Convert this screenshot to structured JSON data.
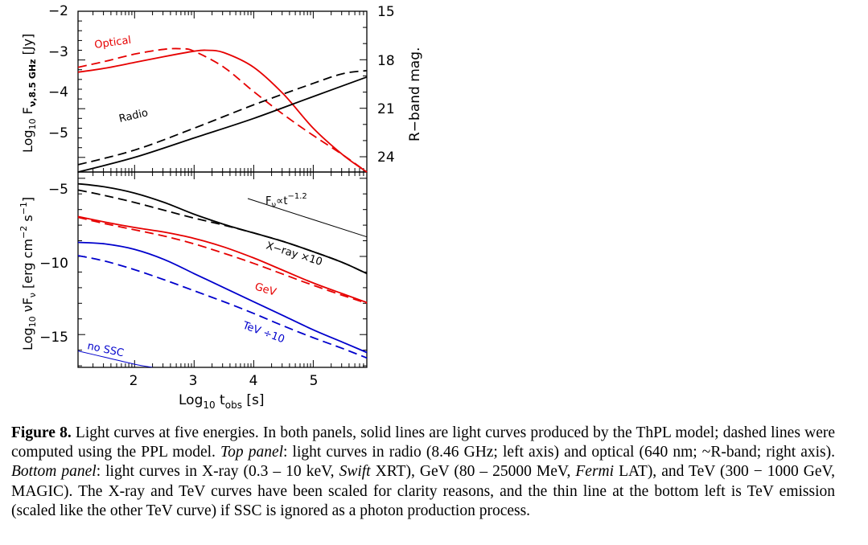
{
  "chart_data": [
    {
      "type": "line",
      "panel": "top",
      "xlabel": "Log10 tobs [s]",
      "ylabel": "Log10 Fν,8.5 GHz [Jy]",
      "ylabel_right": "R−band mag.",
      "xlim": [
        1.05,
        5.9
      ],
      "ylim": [
        -5.3,
        -2.0
      ],
      "yticks": [
        "−2",
        "−3",
        "−4",
        "−5"
      ],
      "yticks_right": [
        "15",
        "18",
        "21",
        "24"
      ],
      "colors": {
        "optical": "#e60000",
        "radio": "#000000"
      },
      "series": [
        {
          "name": "Optical",
          "style": "solid",
          "color": "#e60000",
          "x": [
            1.05,
            1.5,
            2.0,
            2.5,
            3.0,
            3.2,
            3.5,
            4.0,
            4.5,
            5.0,
            5.5,
            5.9
          ],
          "y": [
            -3.25,
            -3.17,
            -3.05,
            -2.93,
            -2.82,
            -2.8,
            -2.85,
            -3.15,
            -3.7,
            -4.4,
            -4.95,
            -5.3
          ]
        },
        {
          "name": "Optical",
          "style": "dashed",
          "color": "#e60000",
          "x": [
            1.05,
            1.5,
            2.0,
            2.5,
            2.8,
            3.0,
            3.5,
            4.0,
            4.5,
            5.0,
            5.5,
            5.9
          ],
          "y": [
            -3.15,
            -3.03,
            -2.88,
            -2.78,
            -2.77,
            -2.82,
            -3.15,
            -3.65,
            -4.12,
            -4.55,
            -4.95,
            -5.3
          ]
        },
        {
          "name": "Radio",
          "style": "solid",
          "color": "#000000",
          "x": [
            1.05,
            2.0,
            3.0,
            4.0,
            5.0,
            5.9
          ],
          "y": [
            -5.3,
            -5.0,
            -4.6,
            -4.2,
            -3.75,
            -3.35
          ]
        },
        {
          "name": "Radio",
          "style": "dashed",
          "color": "#000000",
          "x": [
            1.05,
            2.0,
            3.0,
            4.0,
            5.0,
            5.5,
            5.9
          ],
          "y": [
            -5.15,
            -4.85,
            -4.4,
            -3.92,
            -3.48,
            -3.28,
            -3.22
          ]
        }
      ],
      "annotations": [
        "Optical",
        "Radio"
      ]
    },
    {
      "type": "line",
      "panel": "bottom",
      "xlabel": "Log10 tobs [s]",
      "ylabel": "Log10 νFν [erg cm−2 s−1]",
      "xlim": [
        1.05,
        5.9
      ],
      "ylim": [
        -17.1,
        -4.6
      ],
      "xticks": [
        "2",
        "3",
        "4",
        "5"
      ],
      "yticks": [
        "−5",
        "−10",
        "−15"
      ],
      "colors": {
        "xray": "#000000",
        "gev": "#e60000",
        "tev": "#0000cc"
      },
      "series": [
        {
          "name": "X−ray ×10",
          "style": "solid",
          "color": "#000000",
          "x": [
            1.05,
            1.5,
            2.0,
            2.5,
            3.0,
            3.5,
            4.0,
            4.5,
            5.0,
            5.5,
            5.9
          ],
          "y": [
            -5.35,
            -5.55,
            -5.95,
            -6.55,
            -7.3,
            -7.95,
            -8.5,
            -9.05,
            -9.7,
            -10.4,
            -11.1
          ]
        },
        {
          "name": "X−ray ×10",
          "style": "dashed",
          "color": "#000000",
          "x": [
            1.05,
            1.5,
            2.0,
            2.5,
            3.0,
            3.5,
            4.0,
            4.5,
            5.0,
            5.5,
            5.9
          ],
          "y": [
            -5.75,
            -6.1,
            -6.55,
            -7.05,
            -7.55,
            -8.0,
            -8.5,
            -9.05,
            -9.7,
            -10.4,
            -11.1
          ]
        },
        {
          "name": "GeV",
          "style": "solid",
          "color": "#e60000",
          "x": [
            1.05,
            1.5,
            2.0,
            2.5,
            3.0,
            3.5,
            4.0,
            4.5,
            5.0,
            5.5,
            5.9
          ],
          "y": [
            -7.45,
            -7.8,
            -8.15,
            -8.45,
            -8.85,
            -9.4,
            -10.1,
            -10.9,
            -11.7,
            -12.4,
            -12.95
          ]
        },
        {
          "name": "GeV",
          "style": "dashed",
          "color": "#e60000",
          "x": [
            1.05,
            1.5,
            2.0,
            2.5,
            3.0,
            3.5,
            4.0,
            4.5,
            5.0,
            5.5,
            5.9
          ],
          "y": [
            -7.5,
            -7.9,
            -8.3,
            -8.7,
            -9.2,
            -9.8,
            -10.45,
            -11.15,
            -11.85,
            -12.5,
            -13.0
          ]
        },
        {
          "name": "TeV ÷10",
          "style": "solid",
          "color": "#0000cc",
          "x": [
            1.05,
            1.5,
            2.0,
            2.5,
            3.0,
            3.5,
            4.0,
            4.5,
            5.0,
            5.5,
            5.9
          ],
          "y": [
            -9.1,
            -9.2,
            -9.55,
            -10.2,
            -11.1,
            -12.0,
            -12.9,
            -13.8,
            -14.7,
            -15.5,
            -16.15
          ]
        },
        {
          "name": "TeV ÷10",
          "style": "dashed",
          "color": "#0000cc",
          "x": [
            1.05,
            1.5,
            2.0,
            2.5,
            3.0,
            3.5,
            4.0,
            4.5,
            5.0,
            5.5,
            5.9
          ],
          "y": [
            -9.95,
            -10.3,
            -10.85,
            -11.5,
            -12.2,
            -12.9,
            -13.65,
            -14.45,
            -15.2,
            -15.9,
            -16.5
          ]
        },
        {
          "name": "no SSC",
          "style": "solid-thin",
          "color": "#0000cc",
          "x": [
            1.05,
            1.5,
            2.0,
            2.3
          ],
          "y": [
            -16.05,
            -16.45,
            -16.9,
            -17.1
          ]
        },
        {
          "name": "Fν∝t−1.2",
          "style": "solid-thin",
          "color": "#000000",
          "x": [
            3.9,
            5.9
          ],
          "y": [
            -6.3,
            -8.75
          ]
        }
      ],
      "annotations": [
        "X−ray ×10",
        "GeV",
        "TeV ÷10",
        "no SSC",
        "Fν∝t−1.2"
      ]
    }
  ],
  "text": {
    "top_ylabel": {
      "log": "Log",
      "sub": "10",
      "mid": " F",
      "sub2": "ν,8.5 GHz",
      "tail": " [Jy]"
    },
    "top_ylabel_right": "R−band mag.",
    "bottom_ylabel": {
      "log": "Log",
      "sub": "10",
      "nu": " νF",
      "sub2": "ν",
      "mid": " [erg cm",
      "sup1": "−2",
      "mid2": " s",
      "sup2": "−1",
      "tail": "]"
    },
    "xlabel": {
      "log": "Log",
      "sub": "10",
      "t": " t",
      "sub2": "obs",
      "tail": " [s]"
    },
    "label_optical": "Optical",
    "label_radio": "Radio",
    "label_xray": "X−ray ×10",
    "label_gev": "GeV",
    "label_tev": "TeV ÷10",
    "label_nossc": "no SSC",
    "label_slope": {
      "f": "F",
      "sub": "ν",
      "mid": "∝t",
      "sup": "−1.2"
    }
  },
  "caption": {
    "fig_label": "Figure 8.",
    "part1": " Light curves at five energies. In both panels, solid lines are light curves produced by the ThPL model; dashed lines were computed using the PPL model. ",
    "top_label": "Top panel",
    "part2": ": light curves in radio (8.46 GHz; left axis) and optical (640 nm; ~R-band; right axis). ",
    "bottom_label": "Bottom panel",
    "part3": ": light curves in X-ray (0.3 – 10 keV, ",
    "swift": "Swift",
    "part4": " XRT), GeV (80 – 25000 MeV, ",
    "fermi": "Fermi",
    "part5": " LAT), and TeV (300 − 1000 GeV, MAGIC). The X-ray and TeV curves have been scaled for clarity reasons, and the thin line at the bottom left is TeV emission (scaled like the other TeV curve) if SSC is ignored as a photon production process."
  }
}
